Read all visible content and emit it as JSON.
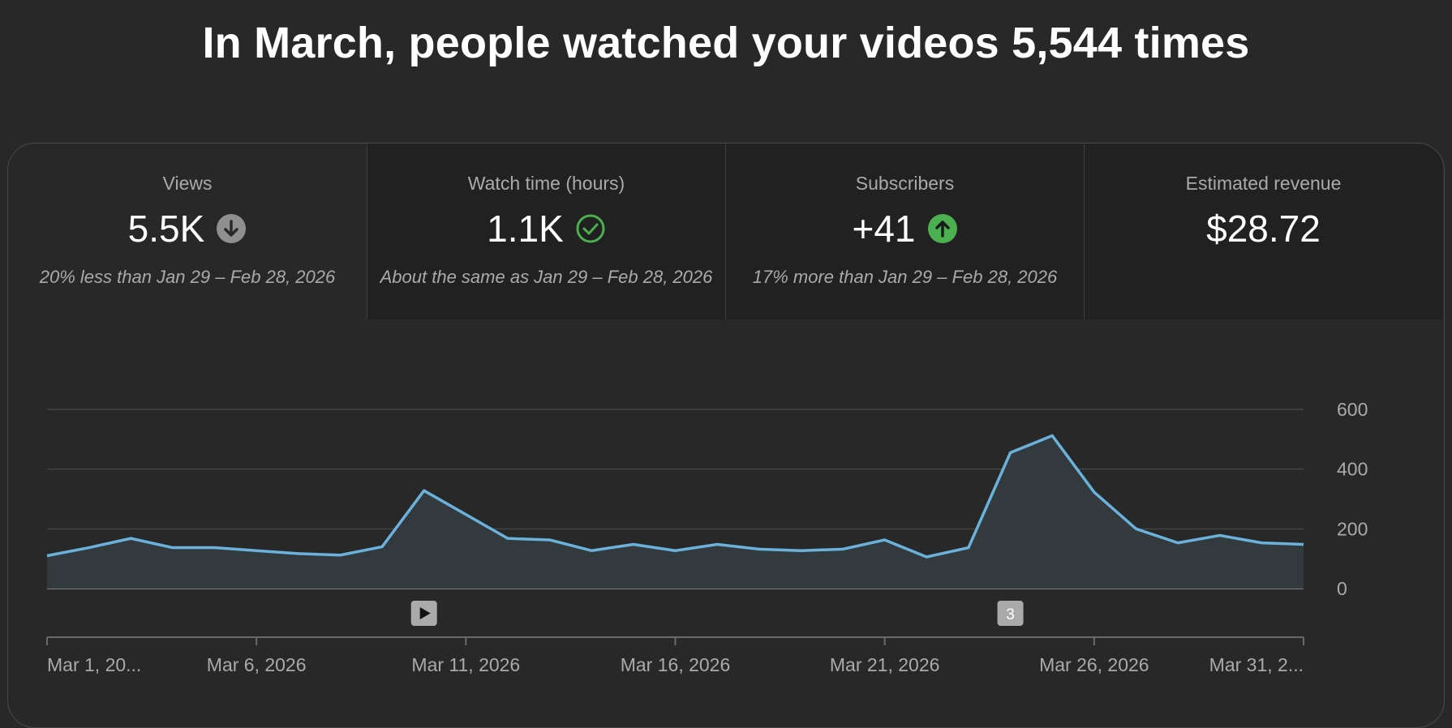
{
  "headline": "In March, people watched your videos 5,544 times",
  "metrics": [
    {
      "label": "Views",
      "value": "5.5K",
      "indicator": "arrow-down-icon",
      "comparison": "20% less than Jan 29 – Feb 28, 2026"
    },
    {
      "label": "Watch time (hours)",
      "value": "1.1K",
      "indicator": "check-circle-icon",
      "comparison": "About the same as Jan 29 – Feb 28, 2026"
    },
    {
      "label": "Subscribers",
      "value": "+41",
      "indicator": "arrow-up-icon",
      "comparison": "17% more than Jan 29 – Feb 28, 2026"
    },
    {
      "label": "Estimated revenue",
      "value": "$28.72",
      "indicator": "",
      "comparison": ""
    }
  ],
  "colors": {
    "line": "#6ab2dc",
    "fill": "#333a3e",
    "good": "#4caf50",
    "neutral": "#8f8f8f",
    "background": "#282828",
    "tab_inactive": "#212121"
  },
  "markers": [
    {
      "day": 10,
      "type": "play-icon",
      "label": ""
    },
    {
      "day": 24,
      "type": "count-badge",
      "label": "3"
    }
  ],
  "chart_data": {
    "type": "area",
    "title": "",
    "xlabel": "",
    "ylabel": "",
    "x": [
      "Mar 1, 2026",
      "Mar 2, 2026",
      "Mar 3, 2026",
      "Mar 4, 2026",
      "Mar 5, 2026",
      "Mar 6, 2026",
      "Mar 7, 2026",
      "Mar 8, 2026",
      "Mar 9, 2026",
      "Mar 10, 2026",
      "Mar 11, 2026",
      "Mar 12, 2026",
      "Mar 13, 2026",
      "Mar 14, 2026",
      "Mar 15, 2026",
      "Mar 16, 2026",
      "Mar 17, 2026",
      "Mar 18, 2026",
      "Mar 19, 2026",
      "Mar 20, 2026",
      "Mar 21, 2026",
      "Mar 22, 2026",
      "Mar 23, 2026",
      "Mar 24, 2026",
      "Mar 25, 2026",
      "Mar 26, 2026",
      "Mar 27, 2026",
      "Mar 28, 2026",
      "Mar 29, 2026",
      "Mar 30, 2026",
      "Mar 31, 2026"
    ],
    "series": [
      {
        "values": [
          110,
          137,
          168,
          137,
          137,
          127,
          117,
          112,
          140,
          328,
          248,
          168,
          163,
          127,
          148,
          127,
          148,
          132,
          127,
          132,
          163,
          106,
          137,
          455,
          512,
          323,
          200,
          153,
          178,
          153,
          148
        ]
      }
    ],
    "xticks": [
      {
        "day": 1,
        "label": "Mar 1, 20..."
      },
      {
        "day": 6,
        "label": "Mar 6, 2026"
      },
      {
        "day": 11,
        "label": "Mar 11, 2026"
      },
      {
        "day": 16,
        "label": "Mar 16, 2026"
      },
      {
        "day": 21,
        "label": "Mar 21, 2026"
      },
      {
        "day": 26,
        "label": "Mar 26, 2026"
      },
      {
        "day": 31,
        "label": "Mar 31, 2..."
      }
    ],
    "yticks": [
      0,
      200,
      400,
      600
    ],
    "ylim": [
      0,
      600
    ],
    "grid": true,
    "y_axis_side": "right"
  }
}
